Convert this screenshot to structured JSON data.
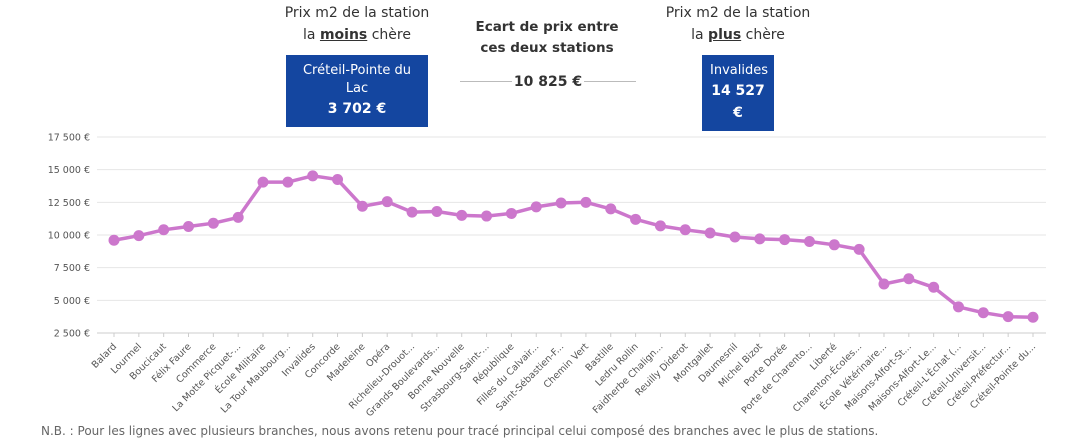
{
  "header": {
    "left_line1": "Prix m2 de la station",
    "left_line2_pre": "la ",
    "left_line2_bold": "moins",
    "left_line2_post": " chère",
    "mid_line1": "Ecart de prix entre",
    "mid_line2": "ces deux stations",
    "right_line1": "Prix m2 de la station",
    "right_line2_pre": "la ",
    "right_line2_bold": "plus",
    "right_line2_post": " chère"
  },
  "cheapest": {
    "station": "Créteil-Pointe du Lac",
    "price": "3 702 €"
  },
  "difference": "10 825 €",
  "most_expensive": {
    "station": "Invalides",
    "price": "14 527 €"
  },
  "footnote": "N.B. : Pour les lignes avec plusieurs branches, nous avons retenu pour tracé principal celui composé des branches avec le plus de stations.",
  "colors": {
    "line": "#cc77cc",
    "box": "#1446a0",
    "grid": "#e6e6e6"
  },
  "chart_data": {
    "type": "line",
    "title": "",
    "xlabel": "",
    "ylabel": "",
    "ylim": [
      2500,
      17500
    ],
    "yticks": [
      2500,
      5000,
      7500,
      10000,
      12500,
      15000,
      17500
    ],
    "ytick_labels": [
      "2 500 €",
      "5 000 €",
      "7 500 €",
      "10 000 €",
      "12 500 €",
      "15 000 €",
      "17 500 €"
    ],
    "grid": true,
    "categories": [
      "Balard",
      "Lourmel",
      "Boucicaut",
      "Félix Faure",
      "Commerce",
      "La Motte Picquet-...",
      "École Militaire",
      "La Tour Maubourg...",
      "Invalides",
      "Concorde",
      "Madeleine",
      "Opéra",
      "Richelieu-Drouot...",
      "Grands Boulevards...",
      "Bonne Nouvelle",
      "Strasbourg-Saint-...",
      "République",
      "Filles du Calvair...",
      "Saint-Sébastien-F...",
      "Chemin Vert",
      "Bastille",
      "Ledru Rollin",
      "Faidherbe Chalign...",
      "Reuilly Diderot",
      "Montgallet",
      "Daumesnil",
      "Michel Bizot",
      "Porte Dorée",
      "Porte de Charento...",
      "Liberté",
      "Charenton-Écoles...",
      "École Vétérinaire...",
      "Maisons-Alfort-St...",
      "Maisons-Alfort-Le...",
      "Créteil-L'Échat (...",
      "Créteil-Universit...",
      "Créteil-Préfectur...",
      "Créteil-Pointe du..."
    ],
    "values": [
      9600,
      9950,
      10400,
      10650,
      10900,
      11350,
      14050,
      14050,
      14527,
      14250,
      12200,
      12550,
      11750,
      11800,
      11500,
      11450,
      11650,
      12150,
      12450,
      12500,
      12000,
      11200,
      10700,
      10400,
      10150,
      9850,
      9700,
      9650,
      9500,
      9250,
      8900,
      6250,
      6650,
      6000,
      4500,
      4050,
      3750,
      3702
    ]
  }
}
